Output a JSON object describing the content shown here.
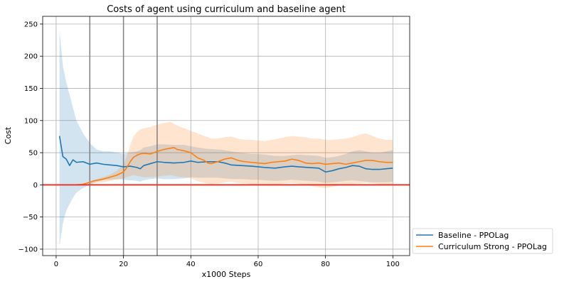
{
  "chart_data": {
    "type": "line",
    "title": "Costs of agent using curriculum and baseline agent",
    "xlabel": "x1000 Steps",
    "ylabel": "Cost",
    "xlim": [
      -4,
      105
    ],
    "ylim": [
      -110,
      262
    ],
    "xticks": [
      0,
      20,
      40,
      60,
      80,
      100
    ],
    "yticks": [
      -100,
      -50,
      0,
      50,
      100,
      150,
      200,
      250
    ],
    "grid": true,
    "legend_position": "outside-bottom-right",
    "vertical_lines": [
      10,
      20,
      30
    ],
    "vertical_line_color": "#808080",
    "horizontal_line": {
      "y": 0,
      "color": "#e8372b"
    },
    "series": [
      {
        "name": "Baseline - PPOLag",
        "color": "#1f77b4",
        "x": [
          1,
          2,
          3,
          4,
          5,
          6,
          8,
          10,
          12,
          14,
          16,
          18,
          20,
          22,
          24,
          25,
          26,
          28,
          30,
          32,
          35,
          38,
          40,
          42,
          45,
          48,
          50,
          52,
          55,
          58,
          60,
          62,
          65,
          68,
          70,
          72,
          75,
          78,
          80,
          82,
          84,
          86,
          88,
          90,
          92,
          94,
          96,
          98,
          100
        ],
        "y": [
          76,
          44,
          40,
          30,
          39,
          35,
          36,
          32,
          34,
          32,
          31,
          30,
          28,
          29,
          27,
          25,
          30,
          33,
          36,
          35,
          34,
          35,
          37,
          35,
          36,
          36,
          34,
          31,
          30,
          29,
          28,
          27,
          26,
          28,
          29,
          28,
          27,
          26,
          20,
          22,
          25,
          27,
          30,
          29,
          25,
          24,
          24,
          25,
          26
        ],
        "band_upper": [
          240,
          185,
          160,
          140,
          120,
          100,
          80,
          65,
          55,
          52,
          52,
          50,
          48,
          50,
          52,
          54,
          58,
          60,
          63,
          63,
          62,
          62,
          60,
          58,
          56,
          55,
          54,
          52,
          50,
          48,
          48,
          47,
          45,
          45,
          46,
          47,
          46,
          45,
          42,
          43,
          45,
          48,
          52,
          54,
          52,
          50,
          50,
          52,
          54
        ],
        "band_lower": [
          -95,
          -60,
          -40,
          -30,
          -20,
          -12,
          -5,
          0,
          5,
          7,
          8,
          9,
          8,
          7,
          6,
          5,
          7,
          9,
          10,
          9,
          9,
          10,
          12,
          11,
          11,
          11,
          10,
          9,
          9,
          8,
          8,
          7,
          6,
          7,
          8,
          7,
          6,
          5,
          3,
          4,
          5,
          6,
          7,
          6,
          5,
          4,
          4,
          4,
          5
        ]
      },
      {
        "name": "Curriculum Strong - PPOLag",
        "color": "#ff7f0e",
        "x": [
          6,
          8,
          10,
          11,
          12,
          14,
          16,
          18,
          20,
          21,
          22,
          23,
          24,
          25,
          26,
          28,
          30,
          32,
          34,
          35,
          36,
          38,
          40,
          42,
          44,
          45,
          46,
          48,
          50,
          52,
          54,
          56,
          58,
          60,
          62,
          64,
          66,
          68,
          70,
          72,
          74,
          76,
          78,
          80,
          82,
          84,
          86,
          88,
          90,
          92,
          94,
          96,
          98,
          100
        ],
        "y": [
          0,
          1,
          4,
          6,
          7,
          9,
          12,
          15,
          20,
          27,
          36,
          43,
          46,
          48,
          49,
          48,
          52,
          55,
          57,
          58,
          55,
          53,
          50,
          42,
          38,
          34,
          33,
          36,
          40,
          42,
          38,
          36,
          35,
          34,
          33,
          35,
          36,
          37,
          40,
          38,
          34,
          33,
          34,
          32,
          33,
          34,
          32,
          34,
          36,
          38,
          38,
          36,
          35,
          35
        ],
        "band_upper": [
          0,
          1,
          5,
          7,
          9,
          12,
          16,
          22,
          32,
          45,
          62,
          75,
          82,
          86,
          88,
          90,
          94,
          96,
          98,
          95,
          92,
          88,
          84,
          80,
          76,
          74,
          72,
          72,
          74,
          75,
          72,
          70,
          70,
          69,
          68,
          70,
          72,
          74,
          76,
          75,
          74,
          72,
          72,
          70,
          70,
          71,
          72,
          74,
          78,
          80,
          76,
          72,
          70,
          70
        ],
        "band_lower": [
          0,
          0,
          1,
          2,
          3,
          4,
          6,
          8,
          10,
          12,
          14,
          15,
          14,
          13,
          12,
          12,
          13,
          14,
          15,
          14,
          13,
          12,
          10,
          6,
          3,
          2,
          1,
          2,
          4,
          5,
          3,
          2,
          1,
          0,
          -1,
          0,
          1,
          2,
          3,
          2,
          0,
          -2,
          -4,
          -5,
          -3,
          -1,
          0,
          1,
          2,
          3,
          2,
          1,
          0,
          0
        ]
      }
    ]
  }
}
